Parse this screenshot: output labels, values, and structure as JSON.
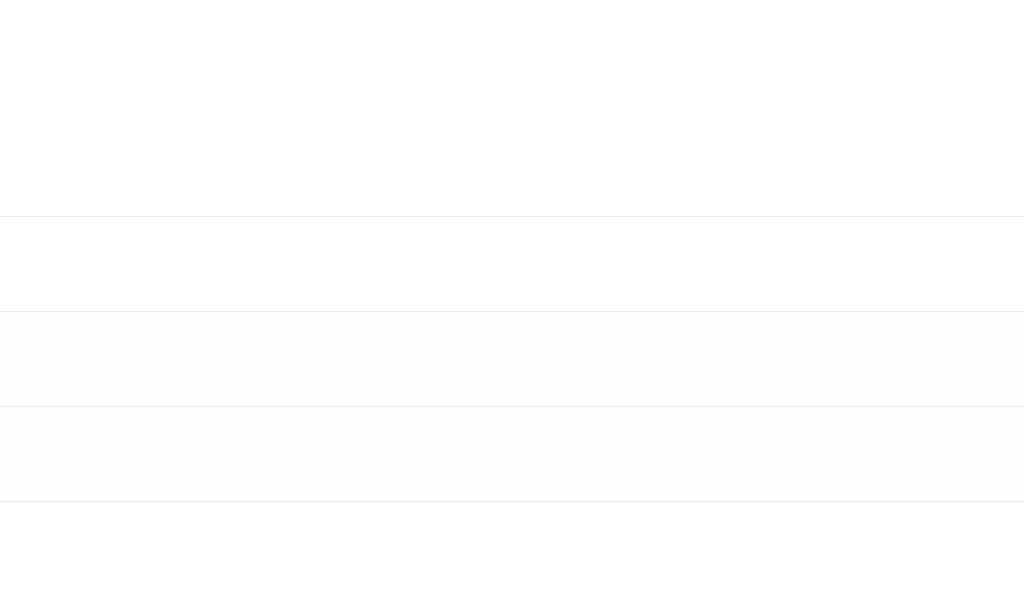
{
  "colors": {
    "background": "#ffffff",
    "divider": "#ebebeb"
  }
}
